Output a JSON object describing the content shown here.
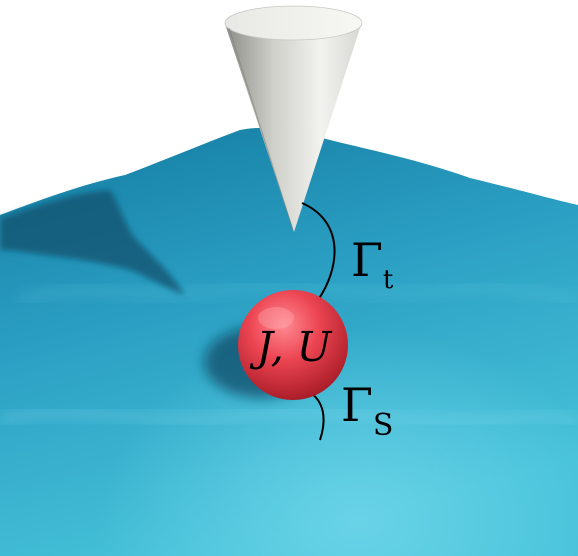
{
  "colors": {
    "background": "#ffffff",
    "surface_light": "#46c2d9",
    "surface_mid": "#2a9ec2",
    "surface_dark": "#137ba0",
    "tip_light": "#eeeeea",
    "tip_dark": "#9a9a95",
    "molecule_light": "#ff7d85",
    "molecule_mid": "#ec4552",
    "molecule_dark": "#b41f2b",
    "line": "#000000"
  },
  "labels": {
    "molecule": "J, U",
    "gamma_tip_symbol": "Γ",
    "gamma_tip_subscript": "t",
    "gamma_substrate_symbol": "Γ",
    "gamma_substrate_subscript": "S"
  }
}
